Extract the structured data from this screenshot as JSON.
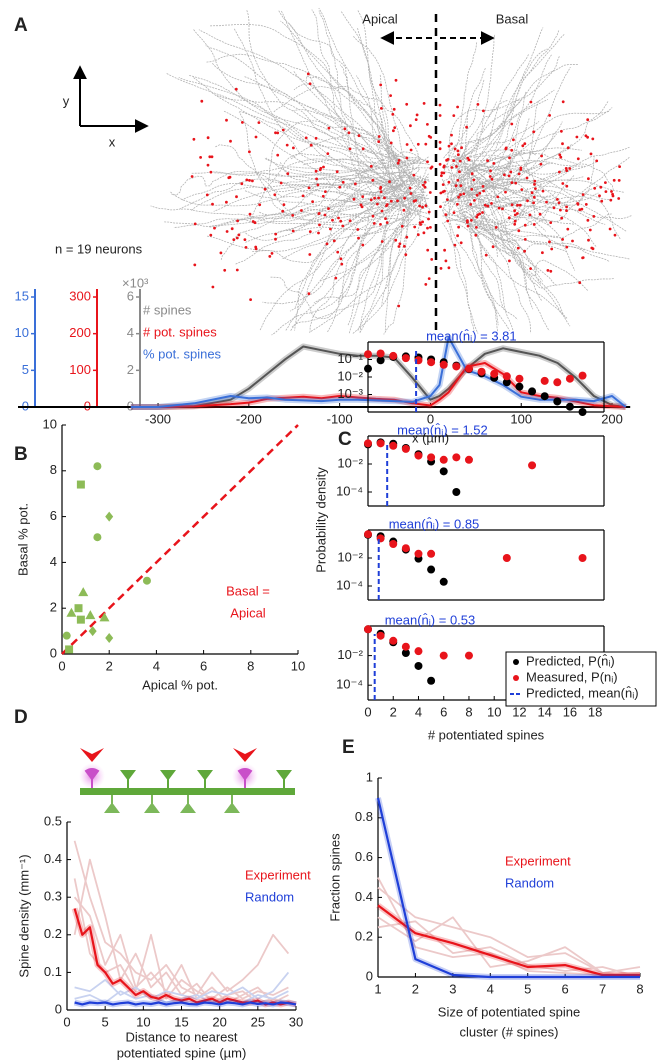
{
  "panel_labels": [
    "A",
    "B",
    "C",
    "D",
    "E"
  ],
  "diagram": {
    "apical": "Apical",
    "basal": "Basal",
    "y_axis": "y",
    "x_axis": "x",
    "neuron_count": "n = 19 neurons"
  },
  "chart_data": [
    {
      "type": "line",
      "xlabel": "x (µm)",
      "x": [
        -330,
        -300,
        -260,
        -220,
        -200,
        -180,
        -160,
        -140,
        -120,
        -100,
        -80,
        -60,
        -40,
        -20,
        0,
        10,
        20,
        40,
        60,
        80,
        100,
        120,
        140,
        160,
        180,
        200,
        215
      ],
      "xlim": [
        -330,
        220
      ],
      "xticks": [
        -300,
        -200,
        -100,
        0,
        100,
        200
      ],
      "ylim": [
        0,
        6
      ],
      "yticks": [
        0,
        2,
        4,
        6
      ],
      "y_multiplier": "×10³",
      "y_color": "#8a8a8a",
      "y2lim": [
        0,
        300
      ],
      "y2ticks": [
        0,
        100,
        200,
        300
      ],
      "y2_color": "#e8141b",
      "y3lim": [
        0,
        15
      ],
      "y3ticks": [
        0,
        5,
        10,
        15
      ],
      "y3_color": "#3a6fd8",
      "series": [
        {
          "name": "# spines",
          "color": "#555555",
          "axis": "y",
          "values": [
            0,
            0,
            0.05,
            0.4,
            1.0,
            1.8,
            2.6,
            3.3,
            3.1,
            2.9,
            2.8,
            2.8,
            2.7,
            1.6,
            0.4,
            0.6,
            1.0,
            2.1,
            2.9,
            3.2,
            3.0,
            2.8,
            2.4,
            1.6,
            0.6,
            0.1,
            0
          ]
        },
        {
          "name": "# pot. spines",
          "color": "#e8141b",
          "axis": "y2",
          "values": [
            0,
            0,
            2,
            8,
            12,
            22,
            25,
            28,
            24,
            30,
            26,
            22,
            20,
            10,
            4,
            20,
            40,
            110,
            120,
            90,
            40,
            30,
            25,
            15,
            5,
            2,
            0
          ]
        },
        {
          "name": "% pot. spines",
          "color": "#3a6fd8",
          "axis": "y3",
          "values": [
            0,
            0,
            0.5,
            1.5,
            1.2,
            1.3,
            1.0,
            0.9,
            0.8,
            1.0,
            1.0,
            0.9,
            0.8,
            0.7,
            1.5,
            3,
            9.5,
            5,
            4.2,
            3,
            1.4,
            1,
            1,
            1,
            0.8,
            1.5,
            0
          ]
        }
      ]
    },
    {
      "type": "scatter",
      "xlabel": "Apical % pot.",
      "ylabel": "Basal % pot.",
      "xlim": [
        0,
        10
      ],
      "ylim": [
        0,
        10
      ],
      "xticks": [
        0,
        2,
        4,
        6,
        8,
        10
      ],
      "yticks": [
        0,
        2,
        4,
        6,
        8,
        10
      ],
      "series": [
        {
          "color": "#8dbb57",
          "x": [
            0.8,
            1.5,
            2.0,
            1.5,
            0.9,
            0.7,
            1.8,
            3.6,
            1.3,
            0.4,
            0.8,
            0.2,
            2.0,
            0.3,
            1.2
          ],
          "values": [
            7.4,
            8.2,
            6.0,
            5.1,
            2.7,
            2.0,
            1.6,
            3.2,
            1.0,
            1.8,
            1.5,
            0.8,
            0.7,
            0.2,
            1.7
          ],
          "markers": [
            "square",
            "circle",
            "diamond",
            "circle",
            "triangle",
            "square",
            "triangle",
            "circle",
            "diamond",
            "triangle",
            "square",
            "circle",
            "diamond",
            "square",
            "triangle"
          ]
        }
      ],
      "diagonal": true,
      "diagonal_color": "#e8141b",
      "annotation": [
        "Basal =",
        "Apical"
      ]
    },
    {
      "type": "scatter",
      "log_y": true,
      "ylabel": "Probability density",
      "xlim": [
        0,
        18.7
      ],
      "ylim": [
        0.0001,
        1
      ],
      "yticks": [
        {
          "value": 0.1,
          "label": "10⁻¹"
        },
        {
          "value": 0.01,
          "label": "10⁻²"
        },
        {
          "value": 0.001,
          "label": "10⁻³"
        }
      ],
      "series": [
        {
          "color": "#000000",
          "x": [
            0,
            1,
            2,
            3,
            4,
            5,
            6,
            7,
            8,
            9,
            10,
            11,
            12,
            13,
            14,
            15,
            16,
            17
          ],
          "values": [
            0.03,
            0.09,
            0.14,
            0.15,
            0.13,
            0.1,
            0.07,
            0.045,
            0.028,
            0.016,
            0.009,
            0.005,
            0.0028,
            0.0015,
            0.0008,
            0.0004,
            0.0002,
            0.0001
          ]
        },
        {
          "color": "#e8141b",
          "x": [
            0,
            1,
            2,
            3,
            4,
            5,
            6,
            7,
            8,
            9,
            10,
            11,
            12,
            14,
            15,
            16,
            17
          ],
          "values": [
            0.2,
            0.22,
            0.16,
            0.12,
            0.09,
            0.07,
            0.05,
            0.04,
            0.03,
            0.02,
            0.015,
            0.011,
            0.008,
            0.006,
            0.005,
            0.008,
            0.012
          ]
        }
      ],
      "mean": 3.81,
      "mean_color": "#1f3fd8",
      "mean_label": "mean(n̂ᵢ) = 3.81"
    },
    {
      "type": "scatter",
      "log_y": true,
      "xlim": [
        0,
        18.7
      ],
      "ylim": [
        1e-05,
        1
      ],
      "yticks": [
        {
          "value": 0.01,
          "label": "10⁻²"
        },
        {
          "value": 0.0001,
          "label": "10⁻⁴"
        }
      ],
      "series": [
        {
          "color": "#000000",
          "x": [
            0,
            1,
            2,
            3,
            4,
            5,
            6,
            7
          ],
          "values": [
            0.25,
            0.35,
            0.28,
            0.14,
            0.05,
            0.015,
            0.003,
            0.0001
          ]
        },
        {
          "color": "#e8141b",
          "x": [
            0,
            1,
            2,
            3,
            4,
            5,
            6,
            7,
            8,
            13
          ],
          "values": [
            0.3,
            0.3,
            0.2,
            0.12,
            0.04,
            0.03,
            0.02,
            0.03,
            0.02,
            0.008
          ]
        }
      ],
      "mean": 1.52,
      "mean_color": "#1f3fd8",
      "mean_label": "mean(n̂ᵢ) = 1.52"
    },
    {
      "type": "scatter",
      "log_y": true,
      "xlim": [
        0,
        18.7
      ],
      "ylim": [
        1e-05,
        1
      ],
      "yticks": [
        {
          "value": 0.01,
          "label": "10⁻²"
        },
        {
          "value": 0.0001,
          "label": "10⁻⁴"
        }
      ],
      "series": [
        {
          "color": "#000000",
          "x": [
            0,
            1,
            2,
            3,
            4,
            5,
            6
          ],
          "values": [
            0.45,
            0.36,
            0.15,
            0.04,
            0.009,
            0.0015,
            0.0002
          ]
        },
        {
          "color": "#e8141b",
          "x": [
            0,
            1,
            2,
            3,
            4,
            5,
            11,
            17
          ],
          "values": [
            0.5,
            0.25,
            0.1,
            0.05,
            0.02,
            0.02,
            0.01,
            0.01
          ]
        }
      ],
      "mean": 0.85,
      "mean_color": "#1f3fd8",
      "mean_label": "mean(n̂ᵢ) = 0.85"
    },
    {
      "type": "scatter",
      "log_y": true,
      "xlabel": "# potentiated spines",
      "xlim": [
        0,
        18.7
      ],
      "ylim": [
        1e-05,
        1
      ],
      "xticks": [
        0,
        2,
        4,
        6,
        8,
        10,
        12,
        14,
        16,
        18
      ],
      "yticks": [
        {
          "value": 0.01,
          "label": "10⁻²"
        },
        {
          "value": 0.0001,
          "label": "10⁻⁴"
        }
      ],
      "series": [
        {
          "name": "Predicted, P(n̂ᵢ)",
          "color": "#000000",
          "x": [
            0,
            1,
            2,
            3,
            4,
            5
          ],
          "values": [
            0.6,
            0.3,
            0.08,
            0.015,
            0.002,
            0.0002
          ]
        },
        {
          "name": "Measured, P(nᵢ)",
          "color": "#e8141b",
          "x": [
            0,
            1,
            2,
            3,
            4,
            6,
            8
          ],
          "values": [
            0.6,
            0.22,
            0.1,
            0.04,
            0.02,
            0.01,
            0.01
          ]
        }
      ],
      "mean": 0.53,
      "mean_color": "#1f3fd8",
      "mean_label": "mean(n̂ᵢ) = 0.53",
      "mean_legend": "Predicted, mean(n̂ᵢ)"
    },
    {
      "type": "line",
      "xlabel": [
        "Distance to nearest",
        "potentiated spine (µm)"
      ],
      "ylabel": "Spine density (mm⁻¹)",
      "xlim": [
        0,
        30
      ],
      "ylim": [
        0,
        0.5
      ],
      "xticks": [
        0,
        5,
        10,
        15,
        20,
        25,
        30
      ],
      "yticks": [
        0,
        0.1,
        0.2,
        0.3,
        0.4,
        0.5
      ],
      "series": [
        {
          "color": "#ecc9c9",
          "x": [
            1,
            3,
            5,
            7,
            9,
            11,
            13,
            15,
            17,
            19,
            21,
            23,
            25,
            27,
            29
          ],
          "values": [
            0.45,
            0.3,
            0.18,
            0.15,
            0.1,
            0.08,
            0.12,
            0.06,
            0.04,
            0.1,
            0.05,
            0.08,
            0.12,
            0.2,
            0.15
          ]
        },
        {
          "color": "#ecc9c9",
          "x": [
            1,
            3,
            5,
            7,
            9,
            11,
            13,
            15,
            17,
            19,
            21,
            23,
            25,
            27,
            29
          ],
          "values": [
            0.35,
            0.15,
            0.1,
            0.12,
            0.05,
            0.2,
            0.03,
            0.08,
            0.05,
            0.03,
            0.06,
            0.03,
            0.05,
            0.04,
            0.06
          ]
        },
        {
          "color": "#ecc9c9",
          "x": [
            1,
            3,
            5,
            7,
            9,
            11,
            13,
            15,
            17,
            19,
            21,
            23,
            25,
            27,
            29
          ],
          "values": [
            0.2,
            0.4,
            0.25,
            0.08,
            0.15,
            0.06,
            0.1,
            0.04,
            0.07,
            0.02,
            0.04,
            0.05,
            0.02,
            0.03,
            0.02
          ]
        },
        {
          "color": "#ecc9c9",
          "x": [
            1,
            3,
            5,
            7,
            9,
            11,
            13,
            15,
            17,
            19,
            21,
            23,
            25,
            27,
            29
          ],
          "values": [
            0.3,
            0.25,
            0.12,
            0.2,
            0.06,
            0.1,
            0.05,
            0.12,
            0.03,
            0.06,
            0.02,
            0.04,
            0.06,
            0.02,
            0.04
          ]
        },
        {
          "color": "#c8d2f0",
          "x": [
            1,
            3,
            5,
            7,
            9,
            11,
            13,
            15,
            17,
            19,
            21,
            23,
            25,
            27,
            29
          ],
          "values": [
            0.06,
            0.05,
            0.08,
            0.04,
            0.06,
            0.03,
            0.05,
            0.04,
            0.03,
            0.05,
            0.04,
            0.06,
            0.03,
            0.05,
            0.1
          ]
        },
        {
          "color": "#c8d2f0",
          "x": [
            1,
            3,
            5,
            7,
            9,
            11,
            13,
            15,
            17,
            19,
            21,
            23,
            25,
            27,
            29
          ],
          "values": [
            0.03,
            0.04,
            0.02,
            0.05,
            0.03,
            0.04,
            0.02,
            0.03,
            0.04,
            0.02,
            0.03,
            0.02,
            0.04,
            0.03,
            0.05
          ]
        },
        {
          "name": "Experiment",
          "color": "#e8141b",
          "x": [
            1,
            2,
            3,
            4,
            5,
            6,
            7,
            8,
            9,
            10,
            11,
            12,
            13,
            14,
            15,
            16,
            17,
            18,
            19,
            20,
            21,
            22,
            23,
            24,
            25,
            26,
            27,
            28,
            29,
            30
          ],
          "values": [
            0.27,
            0.2,
            0.22,
            0.12,
            0.1,
            0.07,
            0.08,
            0.06,
            0.04,
            0.05,
            0.035,
            0.03,
            0.04,
            0.03,
            0.025,
            0.03,
            0.02,
            0.025,
            0.03,
            0.02,
            0.03,
            0.025,
            0.02,
            0.02,
            0.025,
            0.015,
            0.02,
            0.015,
            0.02,
            0.015
          ]
        },
        {
          "name": "Random",
          "color": "#1f3fd8",
          "x": [
            1,
            2,
            3,
            4,
            5,
            6,
            7,
            8,
            9,
            10,
            11,
            12,
            13,
            14,
            15,
            16,
            17,
            18,
            19,
            20,
            21,
            22,
            23,
            24,
            25,
            26,
            27,
            28,
            29,
            30
          ],
          "values": [
            0.02,
            0.015,
            0.02,
            0.018,
            0.02,
            0.015,
            0.018,
            0.02,
            0.015,
            0.018,
            0.016,
            0.02,
            0.015,
            0.018,
            0.02,
            0.016,
            0.015,
            0.02,
            0.018,
            0.015,
            0.02,
            0.018,
            0.015,
            0.02,
            0.016,
            0.018,
            0.015,
            0.02,
            0.018,
            0.015
          ]
        }
      ]
    },
    {
      "type": "line",
      "xlabel": [
        "Size of potentiated spine",
        "cluster (# spines)"
      ],
      "ylabel": "Fraction spines",
      "xlim": [
        1,
        8
      ],
      "ylim": [
        0,
        1
      ],
      "xticks": [
        1,
        2,
        3,
        4,
        5,
        6,
        7,
        8
      ],
      "yticks": [
        0,
        0.2,
        0.4,
        0.6,
        0.8,
        1
      ],
      "series": [
        {
          "color": "#ecc9c9",
          "x": [
            1,
            2,
            3,
            4,
            5,
            6,
            7,
            8
          ],
          "values": [
            0.45,
            0.3,
            0.25,
            0.2,
            0.1,
            0.12,
            0.02,
            0.05
          ]
        },
        {
          "color": "#ecc9c9",
          "x": [
            1,
            2,
            3,
            4,
            5,
            6,
            7,
            8
          ],
          "values": [
            0.3,
            0.18,
            0.3,
            0.05,
            0.08,
            0.15,
            0.02,
            0.0
          ]
        },
        {
          "color": "#ecc9c9",
          "x": [
            1,
            2,
            3,
            4,
            5,
            6,
            7,
            8
          ],
          "values": [
            0.5,
            0.15,
            0.1,
            0.12,
            0.03,
            0.02,
            0.01,
            0.02
          ]
        },
        {
          "color": "#ecc9c9",
          "x": [
            1,
            2,
            3,
            4,
            5,
            6,
            7,
            8
          ],
          "values": [
            0.25,
            0.28,
            0.12,
            0.15,
            0.06,
            0.03,
            0.05,
            0.0
          ]
        },
        {
          "name": "Experiment",
          "color": "#e8141b",
          "x": [
            1,
            2,
            3,
            4,
            5,
            6,
            7,
            8
          ],
          "values": [
            0.36,
            0.22,
            0.17,
            0.11,
            0.05,
            0.06,
            0.01,
            0.01
          ]
        },
        {
          "name": "Random",
          "color": "#1f3fd8",
          "x": [
            1,
            2,
            3,
            4,
            5,
            6,
            7,
            8
          ],
          "values": [
            0.9,
            0.09,
            0.01,
            0,
            0,
            0,
            0,
            0
          ]
        }
      ]
    }
  ]
}
